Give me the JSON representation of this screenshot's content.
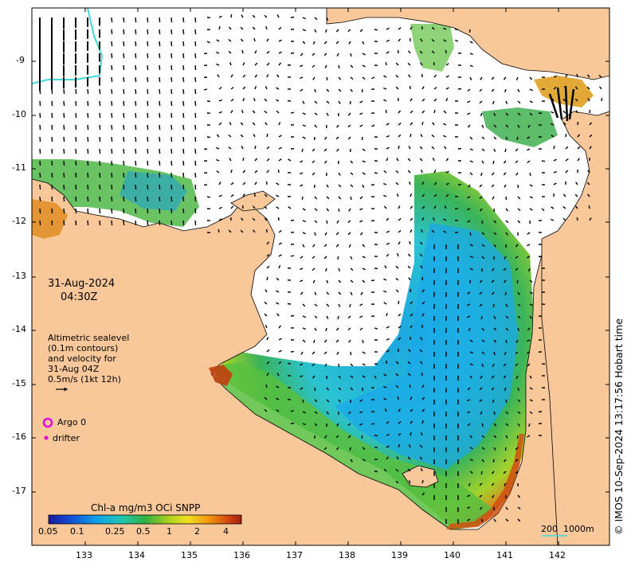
{
  "map": {
    "date": "31-Aug-2024",
    "time": "04:30Z",
    "altimetry_note": [
      "Altimetric sealevel",
      "(0.1m contours)",
      "and velocity for",
      "31-Aug 04Z",
      "0.5m/s (1kt 12h)"
    ],
    "argo_label": "Argo 0",
    "drifter_label": "drifter",
    "colorbar_title": "Chl-a mg/m3 OCi SNPP",
    "colorbar_ticks": [
      "0.05",
      "0.1",
      "0.25",
      "0.5",
      "1",
      "2",
      "4"
    ],
    "scale_label": "200  1000m",
    "credit": "© IMOS 10-Sep-2024 13:17:56 Hobart time",
    "lon_ticks": [
      "133",
      "134",
      "135",
      "136",
      "137",
      "138",
      "139",
      "140",
      "141",
      "142"
    ],
    "lat_ticks": [
      "-9",
      "-10",
      "-11",
      "-12",
      "-13",
      "-14",
      "-15",
      "-16",
      "-17"
    ],
    "colors": {
      "land": "#f9c89a",
      "ocean": "#ffffff",
      "argo": "#e000e0",
      "drifter": "#e000e0",
      "boundary": "#40d8d8"
    }
  }
}
